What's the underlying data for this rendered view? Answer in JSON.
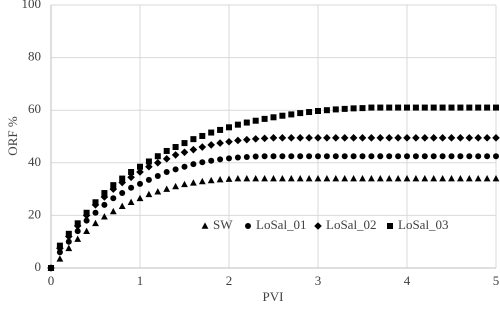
{
  "chart_data": {
    "type": "scatter",
    "xlabel": "PVI",
    "ylabel": "ORF %",
    "xlim": [
      0,
      5
    ],
    "ylim": [
      0,
      100
    ],
    "xticks": [
      0,
      1,
      2,
      3,
      4,
      5
    ],
    "yticks": [
      0,
      20,
      40,
      60,
      80,
      100
    ],
    "grid": true,
    "legend": "bottom",
    "x": [
      0,
      0.1,
      0.2,
      0.3,
      0.4,
      0.5,
      0.6,
      0.7,
      0.8,
      0.9,
      1,
      1.1,
      1.2,
      1.3,
      1.4,
      1.5,
      1.6,
      1.7,
      1.8,
      1.9,
      2,
      2.1,
      2.2,
      2.3,
      2.4,
      2.5,
      2.6,
      2.7,
      2.8,
      2.9,
      3,
      3.1,
      3.2,
      3.3,
      3.4,
      3.5,
      3.6,
      3.7,
      3.8,
      3.9,
      4,
      4.1,
      4.2,
      4.3,
      4.4,
      4.5,
      4.6,
      4.7,
      4.8,
      4.9,
      5
    ],
    "series": [
      {
        "name": "SW",
        "color": "#000000",
        "marker": "triangle",
        "values": [
          0,
          3.5,
          7.5,
          11,
          14,
          17,
          19.5,
          21.5,
          23.5,
          25,
          26.5,
          28,
          29,
          30,
          31,
          31.8,
          32.4,
          32.9,
          33.3,
          33.6,
          33.8,
          34,
          34,
          34,
          34,
          34,
          34,
          34,
          34,
          34,
          34,
          34,
          34,
          34,
          34,
          34,
          34,
          34,
          34,
          34,
          34,
          34,
          34,
          34,
          34,
          34,
          34,
          34,
          34,
          34,
          34
        ]
      },
      {
        "name": "LoSal_01",
        "color": "#000000",
        "marker": "circle",
        "values": [
          0,
          6,
          10,
          14,
          18,
          21,
          24,
          26.5,
          28.5,
          30.5,
          32,
          33.5,
          35,
          36.5,
          37.5,
          38.5,
          39.5,
          40.2,
          40.8,
          41.3,
          41.7,
          42,
          42.2,
          42.4,
          42.5,
          42.5,
          42.5,
          42.5,
          42.5,
          42.5,
          42.5,
          42.5,
          42.5,
          42.5,
          42.5,
          42.5,
          42.5,
          42.5,
          42.5,
          42.5,
          42.5,
          42.5,
          42.5,
          42.5,
          42.5,
          42.5,
          42.5,
          42.5,
          42.5,
          42.5,
          42.5
        ]
      },
      {
        "name": "LoSal_02",
        "color": "#000000",
        "marker": "diamond",
        "values": [
          0,
          7.5,
          12,
          16,
          20,
          24,
          27,
          30,
          32.5,
          34.5,
          36.5,
          38.5,
          40,
          41.5,
          43,
          44,
          45,
          46,
          46.8,
          47.5,
          48,
          48.5,
          48.8,
          49.1,
          49.3,
          49.5,
          49.5,
          49.5,
          49.5,
          49.5,
          49.5,
          49.5,
          49.5,
          49.5,
          49.5,
          49.5,
          49.5,
          49.5,
          49.5,
          49.5,
          49.5,
          49.5,
          49.5,
          49.5,
          49.5,
          49.5,
          49.5,
          49.5,
          49.5,
          49.5,
          49.5
        ]
      },
      {
        "name": "LoSal_03",
        "color": "#000000",
        "marker": "square",
        "values": [
          0,
          8.5,
          13,
          17,
          21,
          25,
          28.5,
          31.5,
          34,
          36.5,
          38.5,
          40.5,
          42.5,
          44.5,
          46,
          47.5,
          49,
          50.2,
          51.5,
          52.5,
          53.5,
          54.5,
          55.3,
          56,
          56.7,
          57.3,
          57.9,
          58.4,
          58.9,
          59.3,
          59.7,
          60,
          60.3,
          60.5,
          60.7,
          60.8,
          61,
          61,
          61,
          61,
          61,
          61,
          61,
          61,
          61,
          61,
          61,
          61,
          61,
          61,
          61
        ]
      }
    ]
  }
}
